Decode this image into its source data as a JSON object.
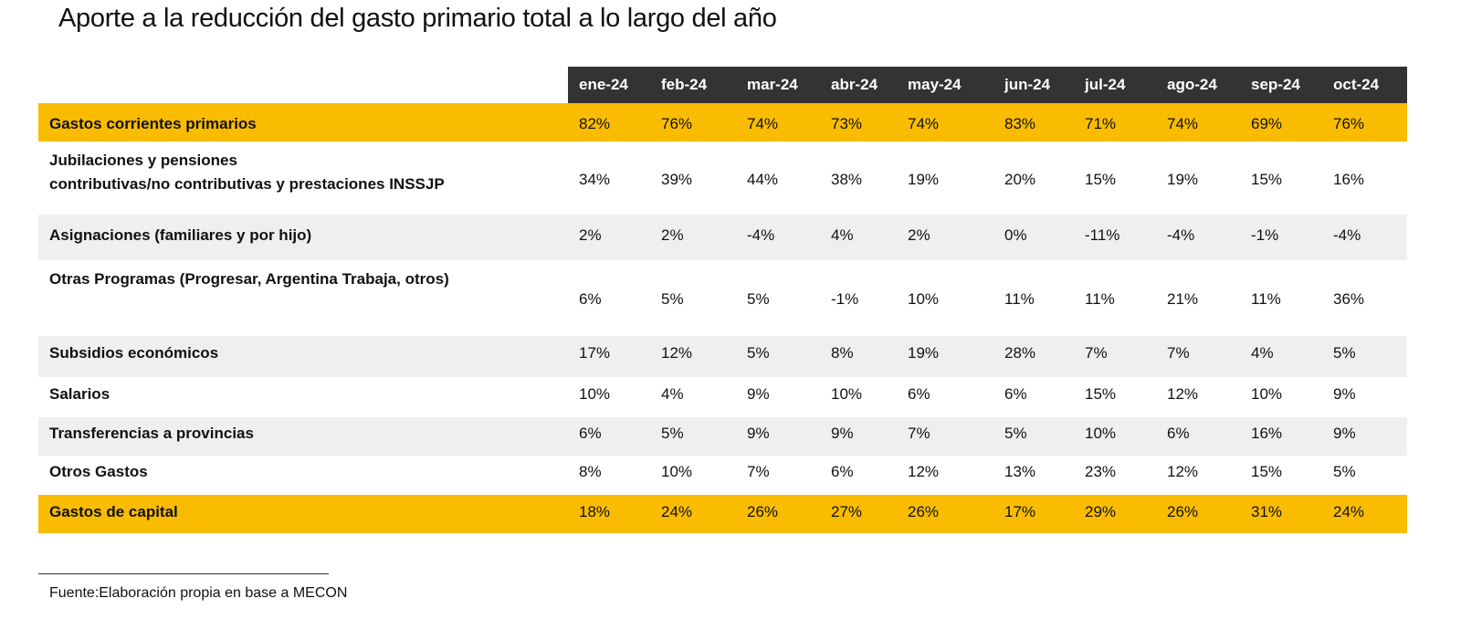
{
  "title": "Aporte a la reducción del gasto primario total a lo largo del año",
  "footer": "Fuente:Elaboración propia en base a MECON",
  "colors": {
    "header_bg": "#333333",
    "highlight": "#F9BC00",
    "band": "#EFEFEF"
  },
  "chart_data": {
    "type": "table",
    "title": "Aporte a la reducción del gasto primario total a lo largo del año",
    "columns": [
      "ene-24",
      "feb-24",
      "mar-24",
      "abr-24",
      "may-24",
      "jun-24",
      "jul-24",
      "ago-24",
      "sep-24",
      "oct-24"
    ],
    "rows": [
      {
        "label": "Gastos corrientes primarios",
        "style": "yellow",
        "values": [
          "82%",
          "76%",
          "74%",
          "73%",
          "74%",
          "83%",
          "71%",
          "74%",
          "69%",
          "76%"
        ]
      },
      {
        "label": "Jubilaciones y pensiones\ncontributivas/no contributivas y prestaciones INSSJP",
        "style": "white",
        "values": [
          "34%",
          "39%",
          "44%",
          "38%",
          "19%",
          "20%",
          "15%",
          "19%",
          "15%",
          "16%"
        ]
      },
      {
        "label": "Asignaciones (familiares y por hijo)",
        "style": "grey",
        "values": [
          "2%",
          "2%",
          "-4%",
          "4%",
          "2%",
          "0%",
          "-11%",
          "-4%",
          "-1%",
          "-4%"
        ]
      },
      {
        "label": "Otras Programas (Progresar, Argentina Trabaja, otros)",
        "style": "white",
        "values": [
          "6%",
          "5%",
          "5%",
          "-1%",
          "10%",
          "11%",
          "11%",
          "21%",
          "11%",
          "36%"
        ]
      },
      {
        "label": "Subsidios económicos",
        "style": "grey",
        "values": [
          "17%",
          "12%",
          "5%",
          "8%",
          "19%",
          "28%",
          "7%",
          "7%",
          "4%",
          "5%"
        ]
      },
      {
        "label": "Salarios",
        "style": "white",
        "values": [
          "10%",
          "4%",
          "9%",
          "10%",
          "6%",
          "6%",
          "15%",
          "12%",
          "10%",
          "9%"
        ]
      },
      {
        "label": "Transferencias a provincias",
        "style": "grey",
        "values": [
          "6%",
          "5%",
          "9%",
          "9%",
          "7%",
          "5%",
          "10%",
          "6%",
          "16%",
          "9%"
        ]
      },
      {
        "label": "Otros Gastos",
        "style": "white",
        "values": [
          "8%",
          "10%",
          "7%",
          "6%",
          "12%",
          "13%",
          "23%",
          "12%",
          "15%",
          "5%"
        ]
      },
      {
        "label": "Gastos de capital",
        "style": "yellow",
        "values": [
          "18%",
          "24%",
          "26%",
          "27%",
          "26%",
          "17%",
          "29%",
          "26%",
          "31%",
          "24%"
        ]
      }
    ]
  }
}
